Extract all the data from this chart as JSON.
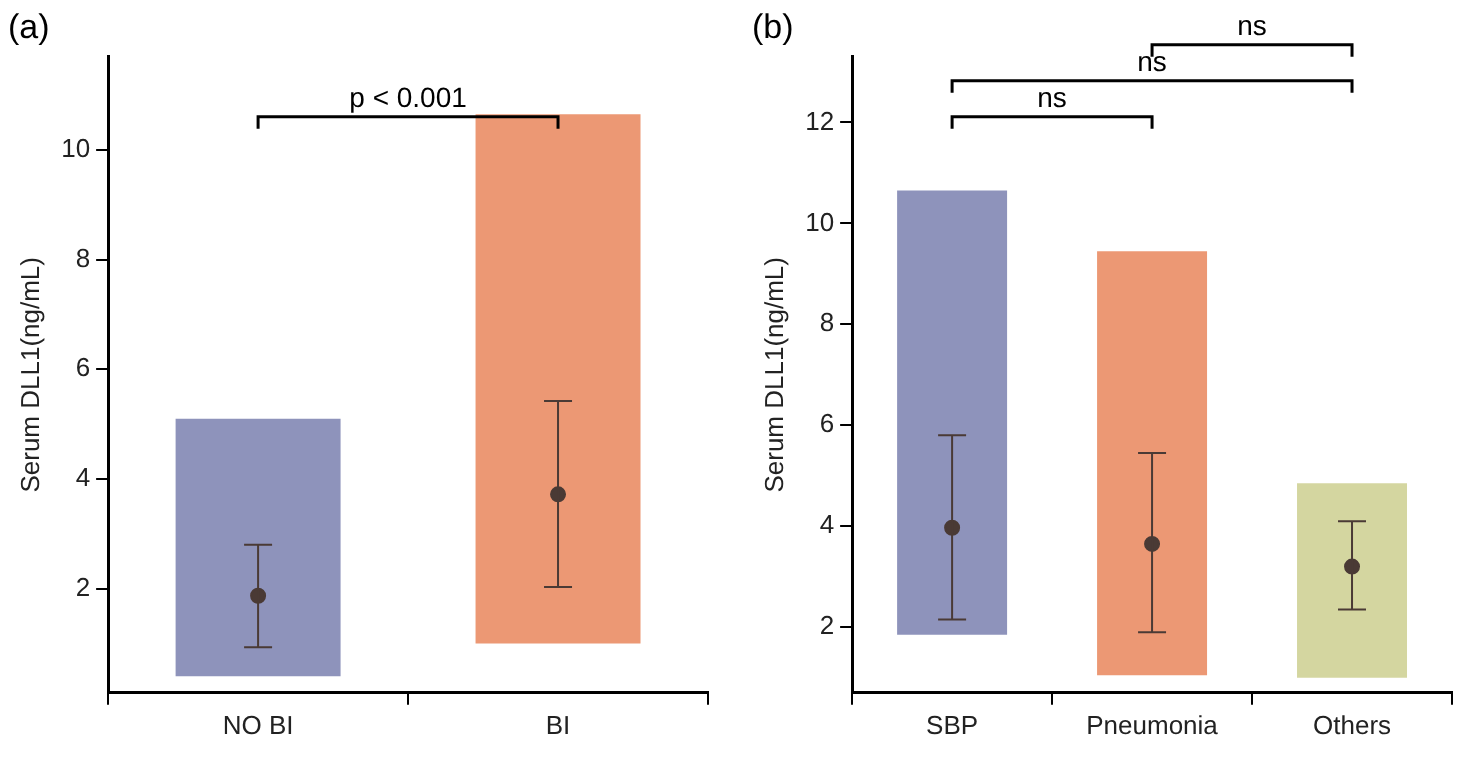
{
  "chart_data": [
    {
      "type": "bar",
      "title": "(a)",
      "ylabel": "Serum DLL1(ng/mL)",
      "categories": [
        "NO BI",
        "BI"
      ],
      "ylim": [
        0.1,
        11.7
      ],
      "yticks": [
        2,
        4,
        6,
        8,
        10
      ],
      "grid": false,
      "legend": false,
      "annotations": [
        "p < 0.001"
      ],
      "series": [
        {
          "type": "bar",
          "base": [
            0.4,
            1.0
          ],
          "values": [
            4.7,
            9.65
          ],
          "colors": [
            "#8e93bb",
            "#ec9874"
          ]
        },
        {
          "type": "scatter",
          "color": "#4a3a35",
          "marker": "circle",
          "values": [
            1.87,
            3.72
          ],
          "errors": [
            [
              0.93,
              2.8
            ],
            [
              2.03,
              5.42
            ]
          ]
        }
      ]
    },
    {
      "type": "bar",
      "title": "(b)",
      "ylabel": "Serum DLL1(ng/mL)",
      "categories": [
        "SBP",
        "Pneumonia",
        "Others"
      ],
      "ylim": [
        0.7,
        13.3
      ],
      "yticks": [
        2,
        4,
        6,
        8,
        10,
        12
      ],
      "grid": false,
      "legend": false,
      "annotations": [
        "ns",
        "ns",
        "ns"
      ],
      "series": [
        {
          "type": "bar",
          "base": [
            1.85,
            1.05,
            1.0
          ],
          "values": [
            8.8,
            8.4,
            3.85
          ],
          "colors": [
            "#8e93bb",
            "#ec9874",
            "#d4d6a0"
          ]
        },
        {
          "type": "scatter",
          "color": "#4a3a35",
          "marker": "circle",
          "values": [
            3.97,
            3.65,
            3.2
          ],
          "errors": [
            [
              2.15,
              5.8
            ],
            [
              1.9,
              5.45
            ],
            [
              2.35,
              4.1
            ]
          ]
        }
      ]
    }
  ]
}
